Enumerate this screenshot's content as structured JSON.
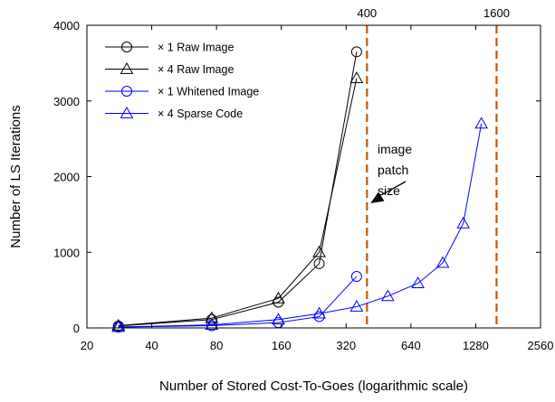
{
  "chart_data": {
    "type": "line",
    "xlabel": "Number of Stored Cost-To-Goes (logarithmic scale)",
    "ylabel": "Number of LS Iterations",
    "x_scale": "log2",
    "xlim": [
      20,
      2560
    ],
    "ylim": [
      0,
      4000
    ],
    "xticks": [
      20,
      40,
      80,
      160,
      320,
      640,
      1280,
      2560
    ],
    "xtick_labels": [
      "20",
      "40",
      "80",
      "160",
      "320",
      "640",
      "1280",
      "2560"
    ],
    "yticks": [
      0,
      1000,
      2000,
      3000,
      4000
    ],
    "ytick_labels": [
      "0",
      "1000",
      "2000",
      "3000",
      "4000"
    ],
    "grid": false,
    "legend_position": "top-left",
    "series": [
      {
        "name": "× 1 Raw Image",
        "color": "#000000",
        "marker": "circle",
        "x": [
          28,
          76,
          155,
          240,
          358
        ],
        "y": [
          25,
          110,
          340,
          850,
          3650
        ]
      },
      {
        "name": "× 4 Raw Image",
        "color": "#000000",
        "marker": "triangle",
        "x": [
          28,
          76,
          155,
          240,
          358
        ],
        "y": [
          30,
          130,
          390,
          1000,
          3300
        ]
      },
      {
        "name": "× 1 Whitened Image",
        "color": "#0000ff",
        "marker": "circle",
        "x": [
          28,
          76,
          155,
          240,
          358
        ],
        "y": [
          10,
          30,
          70,
          150,
          680
        ]
      },
      {
        "name": "× 4 Sparse Code",
        "color": "#0000ff",
        "marker": "triangle",
        "x": [
          28,
          76,
          155,
          240,
          358,
          500,
          690,
          900,
          1120,
          1360
        ],
        "y": [
          12,
          40,
          110,
          190,
          280,
          420,
          590,
          860,
          1380,
          2700
        ]
      }
    ],
    "reference_lines": [
      {
        "x": 400,
        "label": "400",
        "color": "#cc5500"
      },
      {
        "x": 1600,
        "label": "1600",
        "color": "#cc5500"
      }
    ],
    "annotation": {
      "lines": [
        "image",
        "patch",
        "size"
      ],
      "arrow_to": {
        "x": 400,
        "y": 1650
      }
    }
  }
}
